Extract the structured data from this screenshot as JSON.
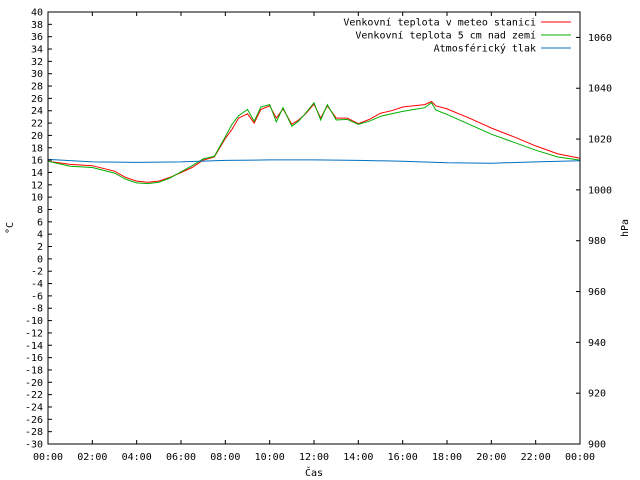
{
  "chart_data": {
    "type": "line",
    "xlabel": "Čas",
    "ylabel": "°C",
    "y2label": "hPa",
    "x_ticks": [
      "00:00",
      "02:00",
      "04:00",
      "06:00",
      "08:00",
      "10:00",
      "12:00",
      "14:00",
      "16:00",
      "18:00",
      "20:00",
      "22:00",
      "00:00"
    ],
    "x_range_hours": [
      0,
      24
    ],
    "ylim": [
      -30,
      40
    ],
    "y_step": 2,
    "y2lim": [
      900,
      1070
    ],
    "y2_ticks": [
      900,
      920,
      940,
      960,
      980,
      1000,
      1020,
      1040,
      1060
    ],
    "grid": false,
    "legend_position": "top-right",
    "series": [
      {
        "name": "Venkovní teplota v meteo stanici",
        "axis": "left",
        "color": "#ff0000",
        "points": [
          [
            0,
            15.8
          ],
          [
            1,
            15.3
          ],
          [
            2,
            15.1
          ],
          [
            3,
            14.2
          ],
          [
            3.5,
            13.2
          ],
          [
            4,
            12.6
          ],
          [
            4.5,
            12.4
          ],
          [
            5,
            12.6
          ],
          [
            5.5,
            13.2
          ],
          [
            6,
            14.0
          ],
          [
            6.5,
            14.8
          ],
          [
            7,
            16.0
          ],
          [
            7.5,
            16.5
          ],
          [
            8,
            19.5
          ],
          [
            8.3,
            21.0
          ],
          [
            8.6,
            22.8
          ],
          [
            9,
            23.5
          ],
          [
            9.3,
            22.0
          ],
          [
            9.6,
            24.2
          ],
          [
            10,
            24.8
          ],
          [
            10.3,
            22.8
          ],
          [
            10.6,
            24.3
          ],
          [
            11,
            21.8
          ],
          [
            11.3,
            22.5
          ],
          [
            11.6,
            23.4
          ],
          [
            12,
            25.1
          ],
          [
            12.3,
            22.8
          ],
          [
            12.6,
            24.8
          ],
          [
            13,
            22.8
          ],
          [
            13.5,
            22.8
          ],
          [
            14,
            21.9
          ],
          [
            14.5,
            22.6
          ],
          [
            15,
            23.6
          ],
          [
            15.5,
            24.0
          ],
          [
            16,
            24.6
          ],
          [
            16.5,
            24.8
          ],
          [
            17,
            25.0
          ],
          [
            17.3,
            25.5
          ],
          [
            17.5,
            24.8
          ],
          [
            18,
            24.3
          ],
          [
            19,
            22.8
          ],
          [
            20,
            21.2
          ],
          [
            21,
            19.8
          ],
          [
            22,
            18.3
          ],
          [
            23,
            17.0
          ],
          [
            24,
            16.3
          ]
        ]
      },
      {
        "name": "Venkovní teplota 5 cm nad zemí",
        "axis": "left",
        "color": "#00b000",
        "points": [
          [
            0,
            15.8
          ],
          [
            1,
            15.0
          ],
          [
            2,
            14.8
          ],
          [
            3,
            13.9
          ],
          [
            3.5,
            12.9
          ],
          [
            4,
            12.3
          ],
          [
            4.5,
            12.2
          ],
          [
            5,
            12.4
          ],
          [
            5.5,
            13.1
          ],
          [
            6,
            14.1
          ],
          [
            6.5,
            15.1
          ],
          [
            7,
            16.2
          ],
          [
            7.5,
            16.6
          ],
          [
            8,
            19.8
          ],
          [
            8.3,
            21.8
          ],
          [
            8.6,
            23.2
          ],
          [
            9,
            24.2
          ],
          [
            9.3,
            22.3
          ],
          [
            9.6,
            24.6
          ],
          [
            10,
            25.0
          ],
          [
            10.3,
            22.2
          ],
          [
            10.6,
            24.5
          ],
          [
            11,
            21.5
          ],
          [
            11.3,
            22.3
          ],
          [
            11.6,
            23.5
          ],
          [
            12,
            25.3
          ],
          [
            12.3,
            22.5
          ],
          [
            12.6,
            25.0
          ],
          [
            13,
            22.5
          ],
          [
            13.5,
            22.6
          ],
          [
            14,
            21.8
          ],
          [
            14.5,
            22.3
          ],
          [
            15,
            23.1
          ],
          [
            15.5,
            23.5
          ],
          [
            16,
            23.9
          ],
          [
            16.5,
            24.2
          ],
          [
            17,
            24.5
          ],
          [
            17.3,
            25.3
          ],
          [
            17.5,
            24.1
          ],
          [
            18,
            23.4
          ],
          [
            19,
            21.8
          ],
          [
            20,
            20.2
          ],
          [
            21,
            18.9
          ],
          [
            22,
            17.6
          ],
          [
            23,
            16.5
          ],
          [
            24,
            16.0
          ]
        ]
      },
      {
        "name": "Atmosférický tlak",
        "axis": "right",
        "color": "#0070c0",
        "points": [
          [
            0,
            1012.0
          ],
          [
            2,
            1011.0
          ],
          [
            4,
            1010.8
          ],
          [
            6,
            1011.0
          ],
          [
            8,
            1011.6
          ],
          [
            10,
            1011.8
          ],
          [
            12,
            1011.8
          ],
          [
            14,
            1011.6
          ],
          [
            16,
            1011.3
          ],
          [
            18,
            1010.7
          ],
          [
            20,
            1010.5
          ],
          [
            22,
            1011.0
          ],
          [
            24,
            1011.5
          ]
        ]
      }
    ]
  }
}
